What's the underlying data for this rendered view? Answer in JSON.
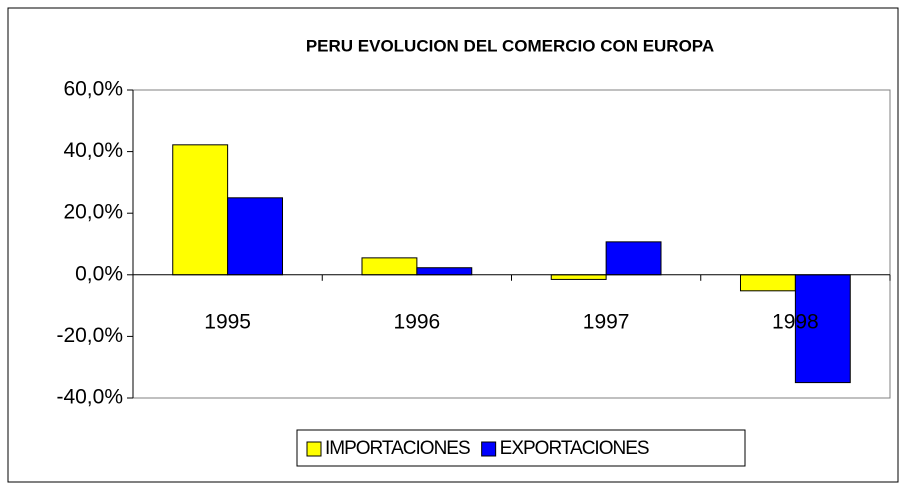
{
  "chart_data": {
    "type": "bar",
    "title": "PERU EVOLUCION DEL COMERCIO CON EUROPA",
    "categories": [
      "1995",
      "1996",
      "1997",
      "1998"
    ],
    "series": [
      {
        "name": "IMPORTACIONES",
        "color": "#ffff00",
        "values": [
          42.2,
          5.5,
          -1.5,
          -5.2
        ]
      },
      {
        "name": "EXPORTACIONES",
        "color": "#0000ff",
        "values": [
          25,
          2.3,
          10.7,
          -35
        ]
      }
    ],
    "ylim": [
      -40,
      60
    ],
    "yticks": [
      {
        "value": -40,
        "label": "-40,0%"
      },
      {
        "value": -20,
        "label": "-20,0%"
      },
      {
        "value": 0,
        "label": "0,0%"
      },
      {
        "value": 20,
        "label": "20,0%"
      },
      {
        "value": 40,
        "label": "40,0%"
      },
      {
        "value": 60,
        "label": "60,0%"
      }
    ],
    "grid": false,
    "legend": "bottom"
  }
}
